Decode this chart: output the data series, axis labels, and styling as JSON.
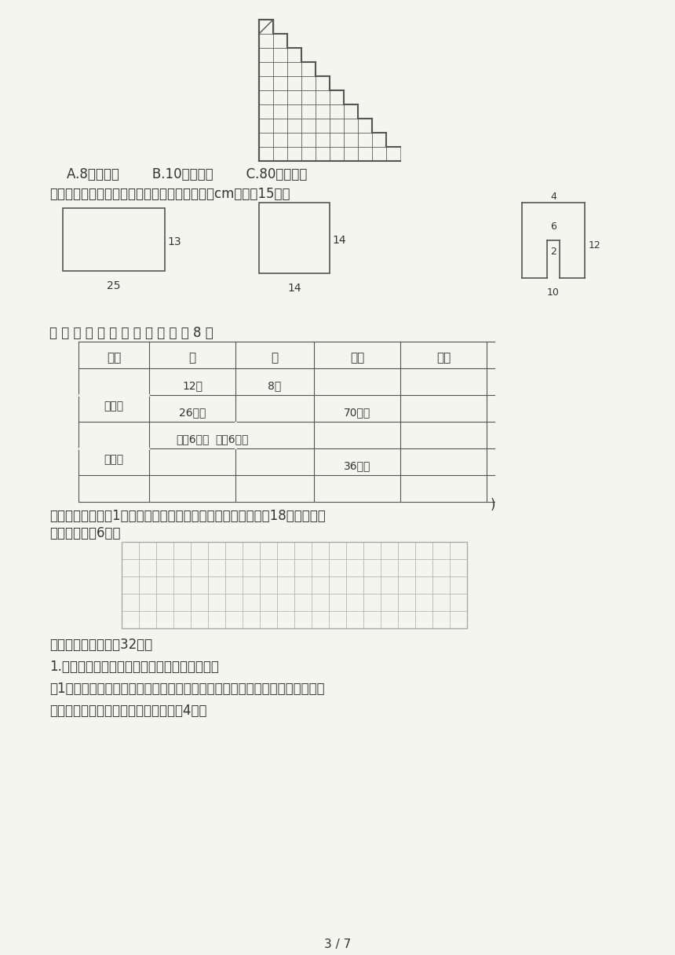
{
  "bg_color": "#f5f5f0",
  "text_color": "#333333",
  "line_color": "#555555",
  "page_num": "3 / 7",
  "options_text": "A.8平方厘米        B.10平方厘米        C.80平方厘米",
  "section4_title": "四、分别求出下面图形的周长和面积。（单位：cm）（共15分）",
  "section5_title": "五 、 算 一 算 ， 填 一 填 。 （ 共 8 分",
  "section6_title": "六、下面每小格是1平方厘米。请在方格纸上画出两个面积都是18平方厘米的",
  "section6_title2": "长方形。（共6分）",
  "section7_title": "七、解决问题。（共32分）",
  "section7_q1": "1.李叔叔新建了一个绿色环保养鸡场，如下图。",
  "section7_q1_1": "（1）为了确保小鸡在阳光下能安全地自由活动，李叔叔将养鸡场的四周用栅栏",
  "section7_q1_2": "围了起来。这圈栅栏至少有多少米？（4分）",
  "table_headers": [
    "图形",
    "长",
    "宽",
    "周长",
    "面积"
  ],
  "table_rows": [
    [
      "长方形",
      "12米",
      "8米",
      "",
      ""
    ],
    [
      "",
      "26分米",
      "",
      "70分米",
      ""
    ],
    [
      "正方形",
      "边长6分米",
      "",
      "",
      ""
    ],
    [
      "",
      "",
      "",
      "36厘米",
      ""
    ]
  ],
  "grid_cols": 20,
  "grid_rows": 5
}
